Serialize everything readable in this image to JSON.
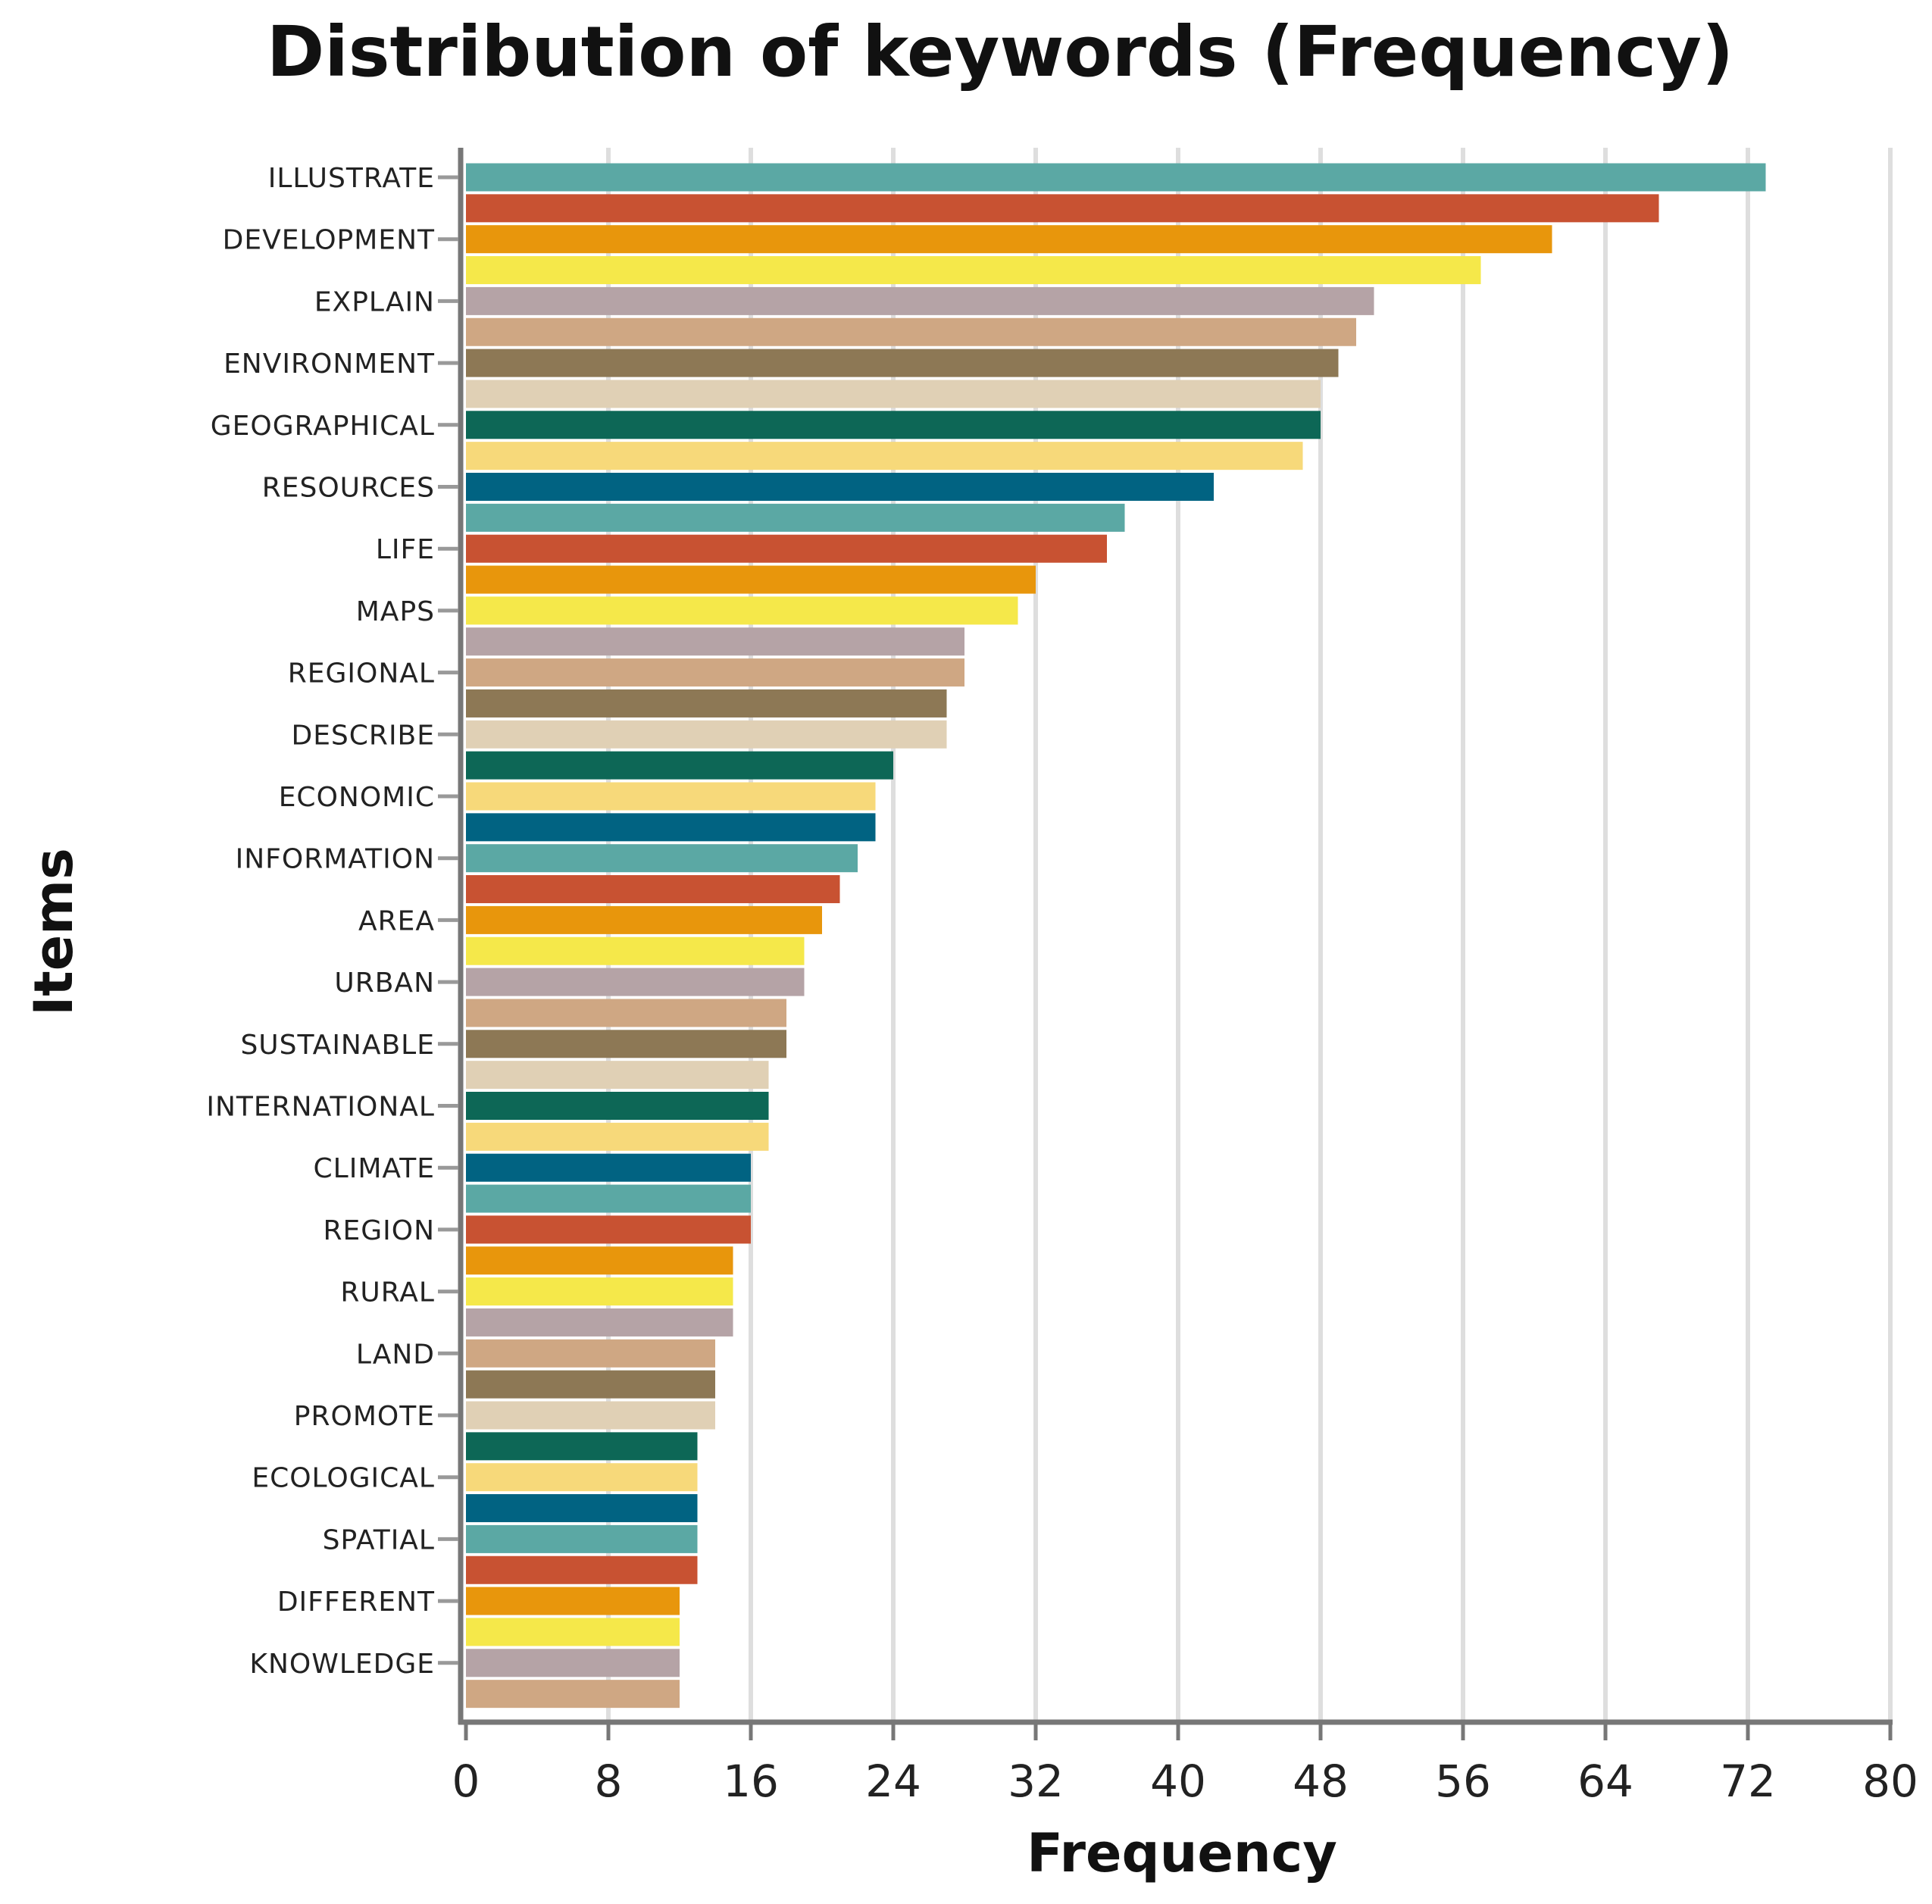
{
  "chart_data": {
    "type": "bar",
    "orientation": "horizontal",
    "title": "Distribution of keywords (Frequency)",
    "xlabel": "Frequency",
    "ylabel": "Items",
    "xlim": [
      0,
      80
    ],
    "xticks": [
      0,
      8,
      16,
      24,
      32,
      40,
      48,
      56,
      64,
      72,
      80
    ],
    "grid": "vertical",
    "labeled_categories": [
      "ILLUSTRATE",
      "DEVELOPMENT",
      "EXPLAIN",
      "ENVIRONMENT",
      "GEOGRAPHICAL",
      "RESOURCES",
      "LIFE",
      "MAPS",
      "REGIONAL",
      "DESCRIBE",
      "ECONOMIC",
      "INFORMATION",
      "AREA",
      "URBAN",
      "SUSTAINABLE",
      "INTERNATIONAL",
      "CLIMATE",
      "REGION",
      "RURAL",
      "LAND",
      "PROMOTE",
      "ECOLOGICAL",
      "SPATIAL",
      "DIFFERENT",
      "KNOWLEDGE"
    ],
    "values": [
      73,
      67,
      61,
      57,
      51,
      50,
      49,
      48,
      48,
      47,
      42,
      37,
      36,
      32,
      31,
      28,
      28,
      27,
      27,
      24,
      23,
      23,
      22,
      21,
      20,
      19,
      19,
      18,
      18,
      17,
      17,
      17,
      16,
      16,
      16,
      15,
      15,
      15,
      14,
      14,
      14,
      13,
      13,
      13,
      13,
      13,
      12,
      12,
      12,
      12
    ],
    "palette": [
      "#5ba8a4",
      "#c85232",
      "#e8960c",
      "#f5e84a",
      "#b5a3a6",
      "#cfa783",
      "#8d7855",
      "#e0d0b5",
      "#0d6756",
      "#f7d97a",
      "#016382"
    ]
  }
}
